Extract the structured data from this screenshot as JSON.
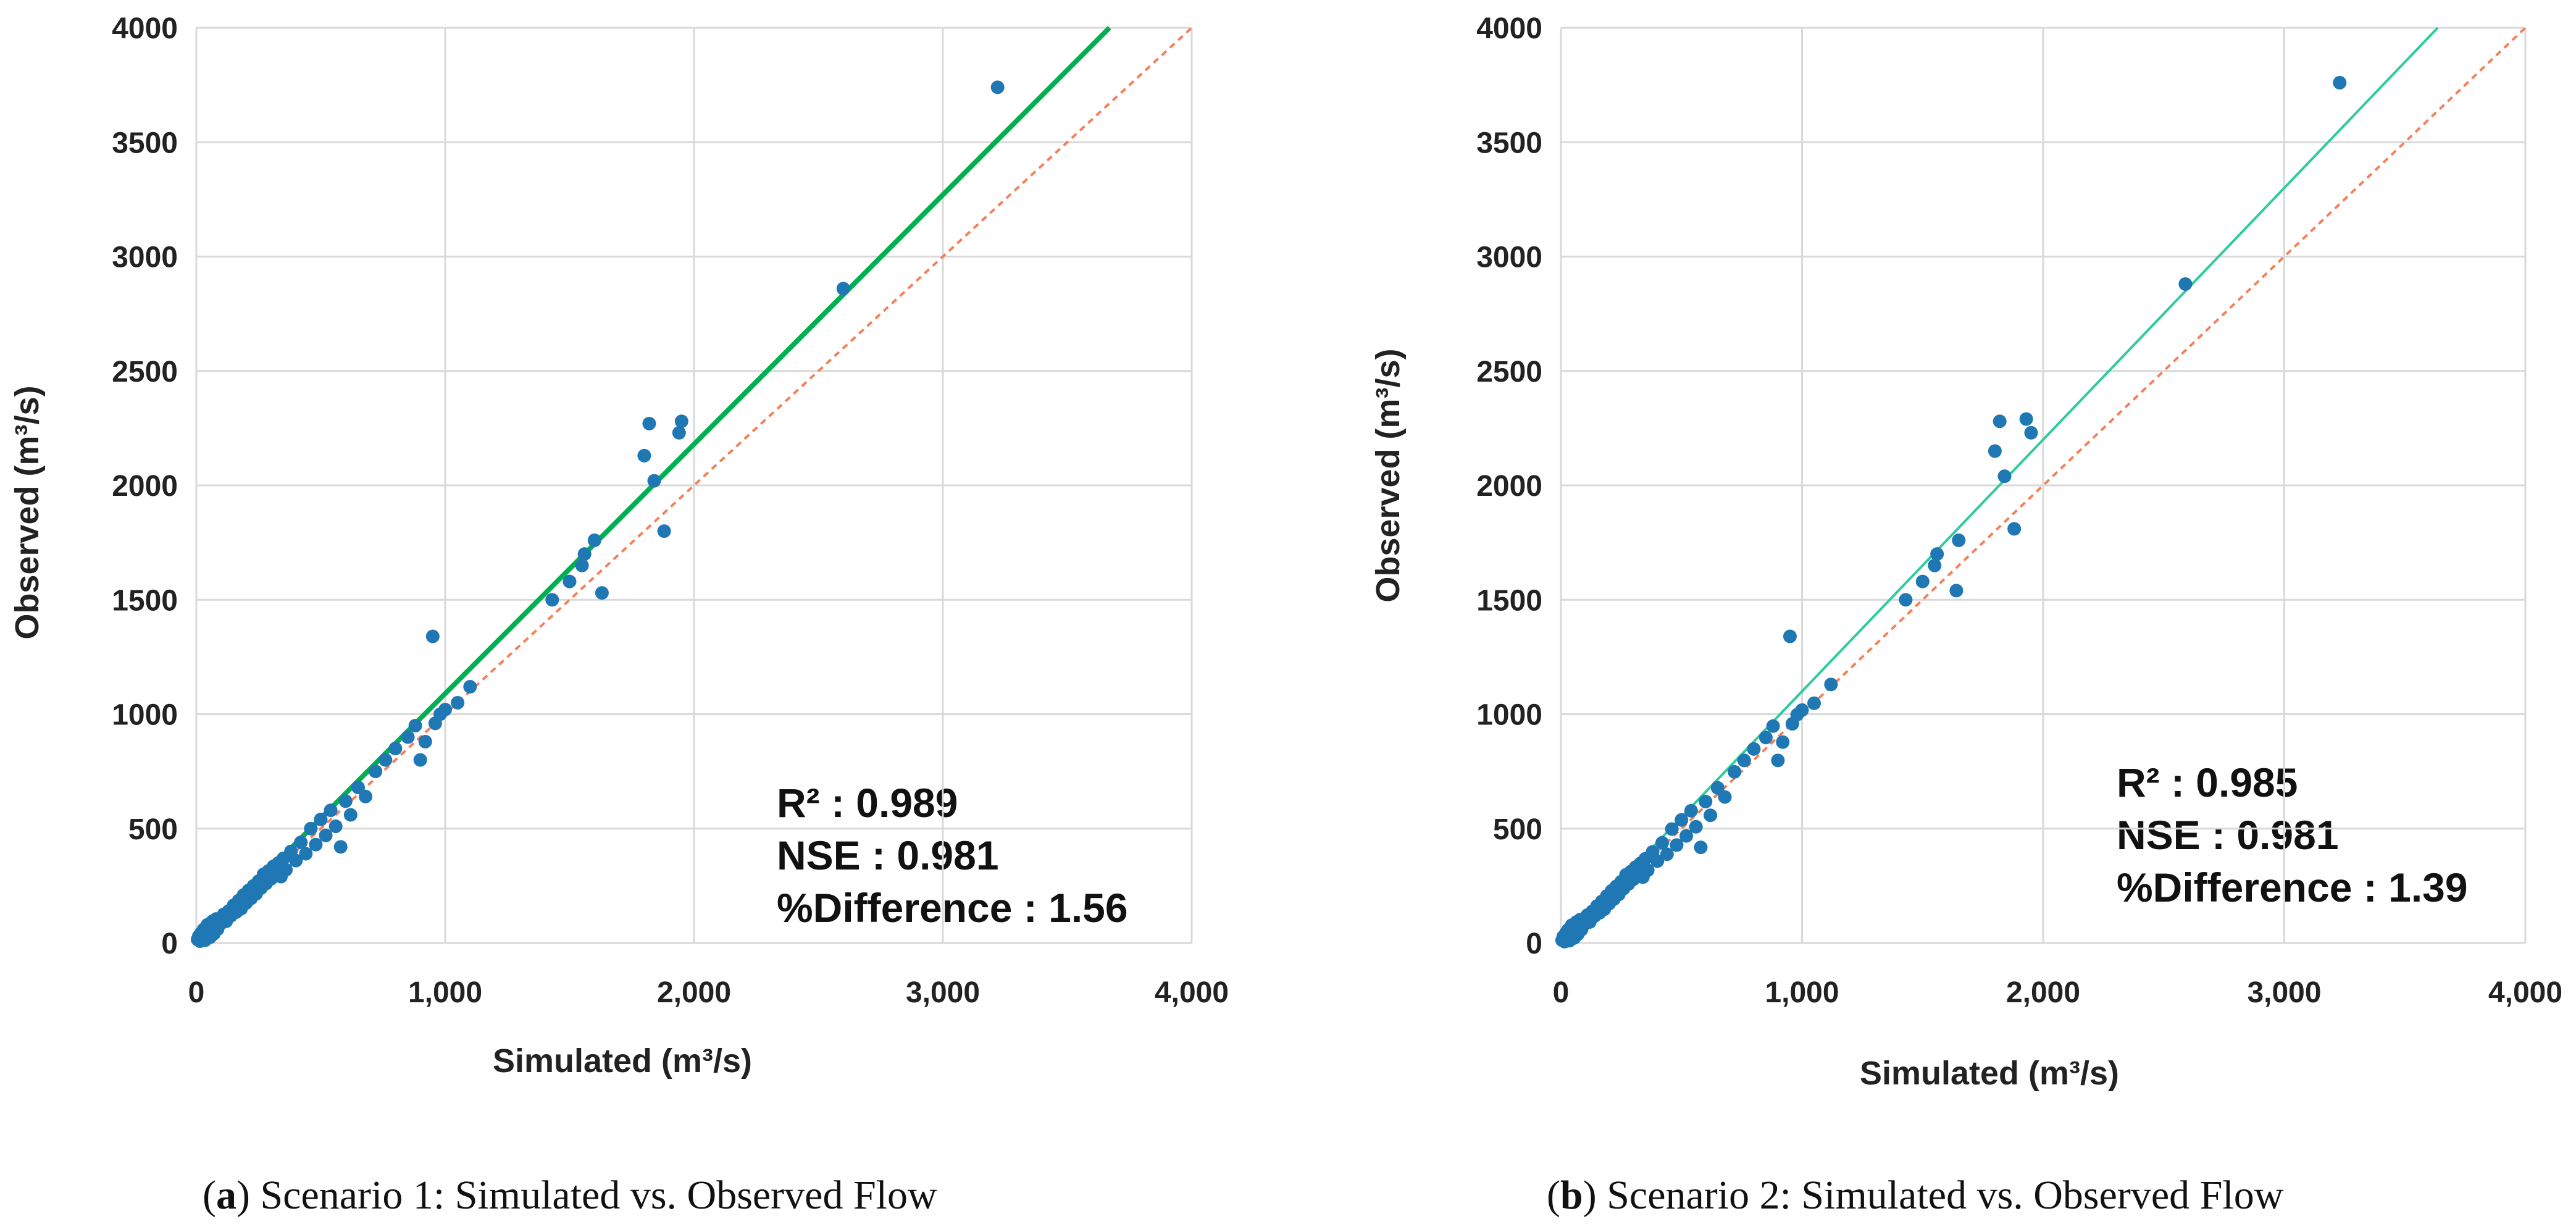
{
  "chart_data": [
    {
      "type": "scatter",
      "panel": "a",
      "caption_letter": "a",
      "caption_text": "Scenario 1: Simulated vs. Observed Flow",
      "xlabel": "Simulated (m³/s)",
      "ylabel": "Observed (m³/s)",
      "xlim": [
        0,
        4000
      ],
      "ylim": [
        0,
        4000
      ],
      "x_ticks": [
        "0",
        "1,000",
        "2,000",
        "3,000",
        "4,000"
      ],
      "y_ticks": [
        "0",
        "500",
        "1000",
        "1500",
        "2000",
        "2500",
        "3000",
        "3500",
        "4000"
      ],
      "grid": true,
      "stats": {
        "r2": "R² : 0.989",
        "nse": "NSE : 0.981",
        "diff": "%Difference : 1.56"
      },
      "fit_line": {
        "slope": 1.09,
        "intercept": 0,
        "color": "#00b050"
      },
      "one_to_one_line": {
        "slope": 1.0,
        "intercept": 0,
        "color": "#f4805a"
      },
      "point_color": "#1f77b4",
      "points": [
        [
          5,
          15
        ],
        [
          10,
          30
        ],
        [
          15,
          8
        ],
        [
          20,
          45
        ],
        [
          25,
          20
        ],
        [
          30,
          60
        ],
        [
          35,
          12
        ],
        [
          40,
          50
        ],
        [
          45,
          80
        ],
        [
          50,
          35
        ],
        [
          55,
          25
        ],
        [
          60,
          70
        ],
        [
          65,
          95
        ],
        [
          70,
          40
        ],
        [
          75,
          55
        ],
        [
          80,
          105
        ],
        [
          85,
          60
        ],
        [
          90,
          75
        ],
        [
          100,
          110
        ],
        [
          105,
          90
        ],
        [
          110,
          125
        ],
        [
          120,
          95
        ],
        [
          130,
          140
        ],
        [
          140,
          120
        ],
        [
          150,
          165
        ],
        [
          160,
          135
        ],
        [
          170,
          185
        ],
        [
          180,
          150
        ],
        [
          190,
          210
        ],
        [
          200,
          175
        ],
        [
          210,
          230
        ],
        [
          220,
          195
        ],
        [
          230,
          250
        ],
        [
          240,
          215
        ],
        [
          250,
          270
        ],
        [
          260,
          240
        ],
        [
          270,
          300
        ],
        [
          280,
          260
        ],
        [
          290,
          315
        ],
        [
          300,
          280
        ],
        [
          310,
          335
        ],
        [
          320,
          300
        ],
        [
          330,
          350
        ],
        [
          340,
          290
        ],
        [
          350,
          370
        ],
        [
          360,
          320
        ],
        [
          380,
          400
        ],
        [
          400,
          360
        ],
        [
          420,
          440
        ],
        [
          440,
          390
        ],
        [
          460,
          500
        ],
        [
          480,
          430
        ],
        [
          500,
          540
        ],
        [
          520,
          470
        ],
        [
          540,
          580
        ],
        [
          560,
          510
        ],
        [
          580,
          420
        ],
        [
          600,
          620
        ],
        [
          620,
          560
        ],
        [
          650,
          680
        ],
        [
          680,
          640
        ],
        [
          720,
          750
        ],
        [
          760,
          800
        ],
        [
          800,
          850
        ],
        [
          850,
          900
        ],
        [
          880,
          950
        ],
        [
          900,
          800
        ],
        [
          920,
          880
        ],
        [
          950,
          1340
        ],
        [
          960,
          960
        ],
        [
          980,
          1000
        ],
        [
          1000,
          1020
        ],
        [
          1050,
          1050
        ],
        [
          1100,
          1120
        ],
        [
          1430,
          1500
        ],
        [
          1500,
          1580
        ],
        [
          1550,
          1650
        ],
        [
          1560,
          1700
        ],
        [
          1600,
          1760
        ],
        [
          1630,
          1530
        ],
        [
          1800,
          2130
        ],
        [
          1820,
          2270
        ],
        [
          1840,
          2020
        ],
        [
          1880,
          1800
        ],
        [
          1940,
          2230
        ],
        [
          1950,
          2280
        ],
        [
          2600,
          2860
        ],
        [
          3220,
          3740
        ]
      ]
    },
    {
      "type": "scatter",
      "panel": "b",
      "caption_letter": "b",
      "caption_text": "Scenario 2: Simulated vs. Observed Flow",
      "xlabel": "Simulated (m³/s)",
      "ylabel": "Observed (m³/s)",
      "xlim": [
        0,
        4000
      ],
      "ylim": [
        0,
        4000
      ],
      "x_ticks": [
        "0",
        "1,000",
        "2,000",
        "3,000",
        "4,000"
      ],
      "y_ticks": [
        "0",
        "500",
        "1000",
        "1500",
        "2000",
        "2500",
        "3000",
        "3500",
        "4000"
      ],
      "grid": true,
      "stats": {
        "r2": "R² : 0.985",
        "nse": "NSE : 0.981",
        "diff": "%Difference : 1.39"
      },
      "fit_line": {
        "slope": 1.1,
        "intercept": 0,
        "color": "#2ecc9a"
      },
      "one_to_one_line": {
        "slope": 1.0,
        "intercept": 0,
        "color": "#f4805a"
      },
      "point_color": "#1f77b4",
      "points": [
        [
          5,
          12
        ],
        [
          10,
          28
        ],
        [
          15,
          6
        ],
        [
          20,
          42
        ],
        [
          25,
          18
        ],
        [
          30,
          58
        ],
        [
          35,
          10
        ],
        [
          40,
          48
        ],
        [
          45,
          78
        ],
        [
          50,
          33
        ],
        [
          55,
          22
        ],
        [
          60,
          68
        ],
        [
          65,
          92
        ],
        [
          70,
          38
        ],
        [
          75,
          52
        ],
        [
          80,
          102
        ],
        [
          85,
          58
        ],
        [
          90,
          72
        ],
        [
          100,
          108
        ],
        [
          105,
          88
        ],
        [
          110,
          122
        ],
        [
          120,
          92
        ],
        [
          130,
          138
        ],
        [
          140,
          118
        ],
        [
          150,
          162
        ],
        [
          160,
          132
        ],
        [
          170,
          182
        ],
        [
          180,
          148
        ],
        [
          190,
          205
        ],
        [
          200,
          172
        ],
        [
          210,
          228
        ],
        [
          220,
          192
        ],
        [
          230,
          248
        ],
        [
          240,
          212
        ],
        [
          250,
          268
        ],
        [
          260,
          238
        ],
        [
          270,
          298
        ],
        [
          280,
          258
        ],
        [
          290,
          312
        ],
        [
          300,
          278
        ],
        [
          310,
          332
        ],
        [
          320,
          298
        ],
        [
          330,
          348
        ],
        [
          340,
          288
        ],
        [
          350,
          368
        ],
        [
          360,
          318
        ],
        [
          380,
          398
        ],
        [
          400,
          358
        ],
        [
          420,
          438
        ],
        [
          440,
          388
        ],
        [
          460,
          498
        ],
        [
          480,
          428
        ],
        [
          500,
          538
        ],
        [
          520,
          468
        ],
        [
          540,
          578
        ],
        [
          560,
          508
        ],
        [
          580,
          418
        ],
        [
          600,
          618
        ],
        [
          620,
          558
        ],
        [
          650,
          678
        ],
        [
          680,
          638
        ],
        [
          720,
          748
        ],
        [
          760,
          798
        ],
        [
          800,
          848
        ],
        [
          850,
          898
        ],
        [
          880,
          948
        ],
        [
          900,
          798
        ],
        [
          920,
          878
        ],
        [
          950,
          1340
        ],
        [
          960,
          958
        ],
        [
          980,
          998
        ],
        [
          1000,
          1018
        ],
        [
          1050,
          1048
        ],
        [
          1120,
          1130
        ],
        [
          1430,
          1500
        ],
        [
          1500,
          1580
        ],
        [
          1550,
          1650
        ],
        [
          1560,
          1700
        ],
        [
          1650,
          1760
        ],
        [
          1640,
          1540
        ],
        [
          1800,
          2150
        ],
        [
          1820,
          2280
        ],
        [
          1840,
          2040
        ],
        [
          1880,
          1810
        ],
        [
          1930,
          2290
        ],
        [
          1950,
          2230
        ],
        [
          2590,
          2880
        ],
        [
          3230,
          3760
        ]
      ]
    }
  ]
}
